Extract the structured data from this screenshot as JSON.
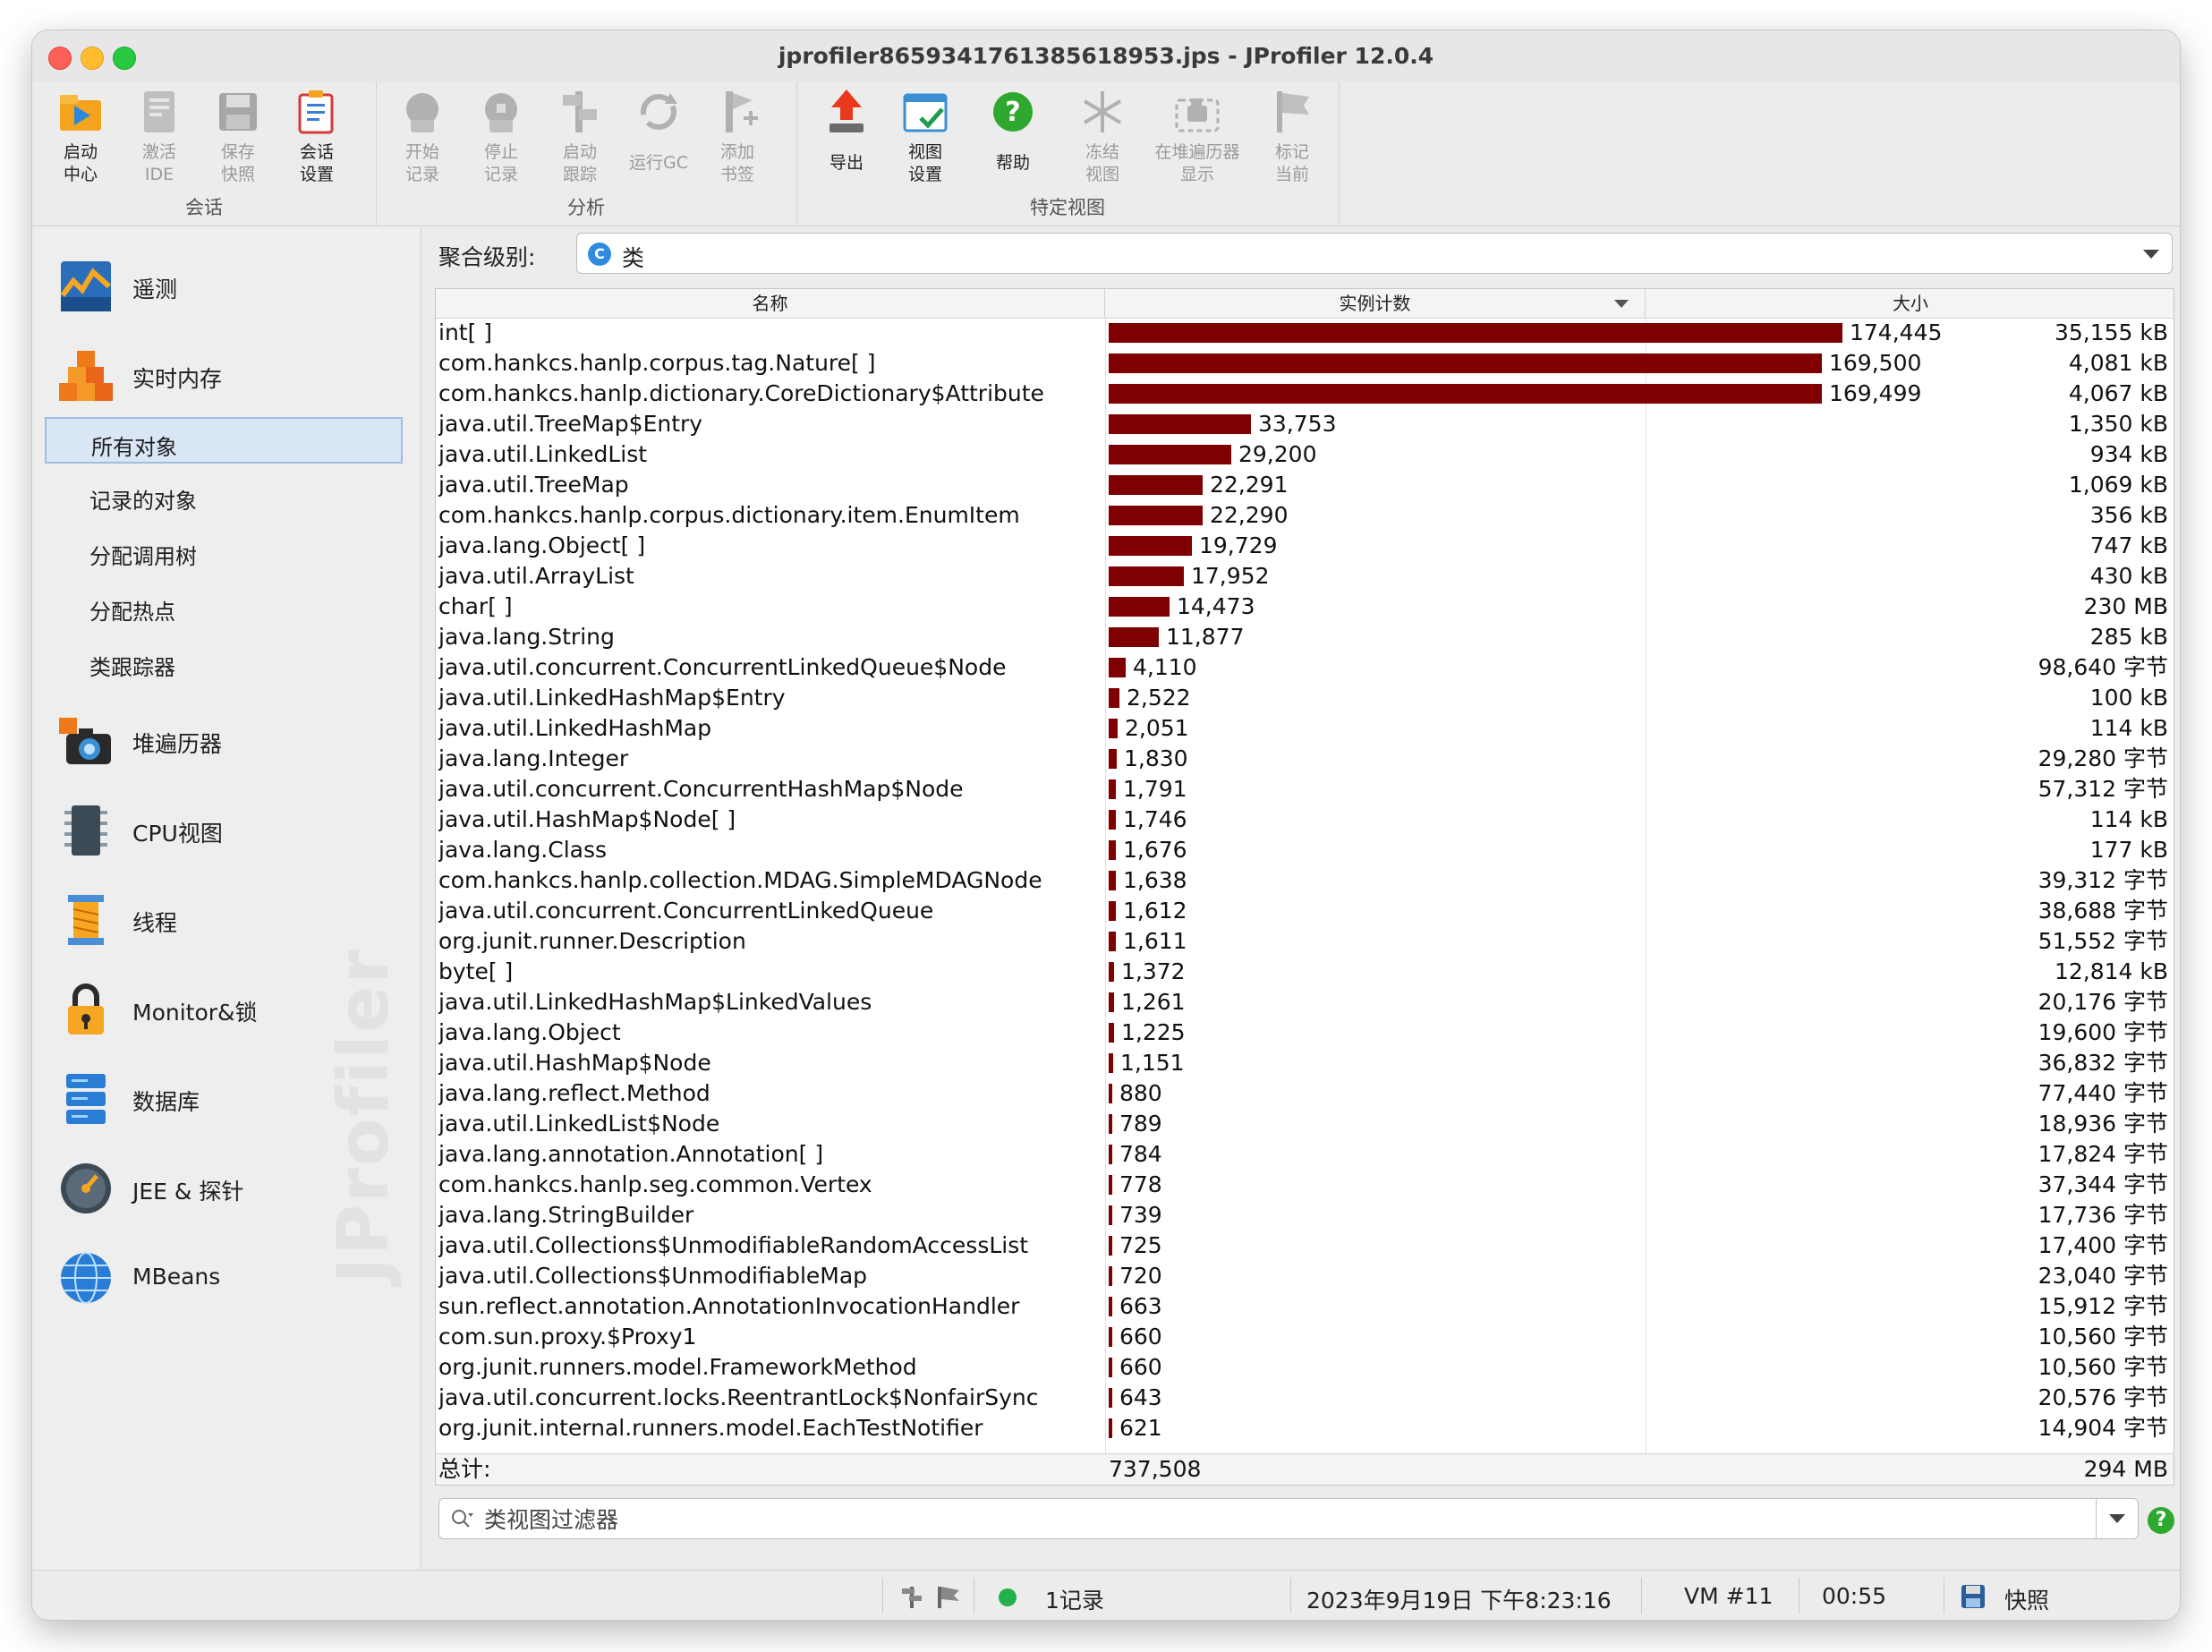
{
  "window": {
    "title": "jprofiler8659341761385618953.jps - JProfiler 12.0.4"
  },
  "toolbar": {
    "groups": [
      {
        "label": "会话",
        "buttons": [
          {
            "label": "启动\n中心",
            "icon": "launch-center-icon"
          },
          {
            "label": "激活\nIDE",
            "icon": "activate-ide-icon"
          },
          {
            "label": "保存\n快照",
            "icon": "save-snapshot-icon"
          },
          {
            "label": "会话\n设置",
            "icon": "session-settings-icon"
          }
        ]
      },
      {
        "label": "分析",
        "buttons": [
          {
            "label": "开始\n记录",
            "icon": "start-recording-icon"
          },
          {
            "label": "停止\n记录",
            "icon": "stop-recording-icon"
          },
          {
            "label": "启动\n跟踪",
            "icon": "start-tracking-icon"
          },
          {
            "label": "运行GC",
            "icon": "run-gc-icon"
          },
          {
            "label": "添加\n书签",
            "icon": "add-bookmark-icon"
          }
        ]
      },
      {
        "label": "特定视图",
        "buttons": [
          {
            "label": "导出",
            "icon": "export-icon"
          },
          {
            "label": "视图\n设置",
            "icon": "view-settings-icon"
          },
          {
            "label": "帮助",
            "icon": "help-icon"
          },
          {
            "label": "冻结\n视图",
            "icon": "freeze-view-icon"
          },
          {
            "label": "在堆遍历器\n显示",
            "icon": "show-in-heap-walker-icon"
          },
          {
            "label": "标记\n当前",
            "icon": "mark-current-icon"
          }
        ]
      }
    ]
  },
  "sidebar": {
    "items": [
      {
        "label": "遥测",
        "icon": "telemetry-icon"
      },
      {
        "label": "实时内存",
        "icon": "live-memory-icon"
      },
      {
        "label": "堆遍历器",
        "icon": "heap-walker-icon"
      },
      {
        "label": "CPU视图",
        "icon": "cpu-views-icon"
      },
      {
        "label": "线程",
        "icon": "threads-icon"
      },
      {
        "label": "Monitor&锁",
        "icon": "monitor-lock-icon"
      },
      {
        "label": "数据库",
        "icon": "database-icon"
      },
      {
        "label": "JEE & 探针",
        "icon": "jee-probes-icon"
      },
      {
        "label": "MBeans",
        "icon": "mbeans-icon"
      }
    ],
    "sub_items": [
      {
        "label": "所有对象",
        "active": true
      },
      {
        "label": "记录的对象",
        "active": false
      },
      {
        "label": "分配调用树",
        "active": false
      },
      {
        "label": "分配热点",
        "active": false
      },
      {
        "label": "类跟踪器",
        "active": false
      }
    ],
    "watermark": "JProfiler"
  },
  "aggregation": {
    "label": "聚合级别:",
    "value": "类",
    "badge": "C"
  },
  "table": {
    "headers": {
      "name": "名称",
      "count": "实例计数",
      "size": "大小"
    },
    "max_count": 174445,
    "bar_color": "#7f0000",
    "rows": [
      {
        "name": "int[ ]",
        "count": 174445,
        "count_label": "174,445",
        "size": "35,155 kB"
      },
      {
        "name": "com.hankcs.hanlp.corpus.tag.Nature[ ]",
        "count": 169500,
        "count_label": "169,500",
        "size": "4,081 kB"
      },
      {
        "name": "com.hankcs.hanlp.dictionary.CoreDictionary$Attribute",
        "count": 169499,
        "count_label": "169,499",
        "size": "4,067 kB"
      },
      {
        "name": "java.util.TreeMap$Entry",
        "count": 33753,
        "count_label": "33,753",
        "size": "1,350 kB"
      },
      {
        "name": "java.util.LinkedList",
        "count": 29200,
        "count_label": "29,200",
        "size": "934 kB"
      },
      {
        "name": "java.util.TreeMap",
        "count": 22291,
        "count_label": "22,291",
        "size": "1,069 kB"
      },
      {
        "name": "com.hankcs.hanlp.corpus.dictionary.item.EnumItem",
        "count": 22290,
        "count_label": "22,290",
        "size": "356 kB"
      },
      {
        "name": "java.lang.Object[ ]",
        "count": 19729,
        "count_label": "19,729",
        "size": "747 kB"
      },
      {
        "name": "java.util.ArrayList",
        "count": 17952,
        "count_label": "17,952",
        "size": "430 kB"
      },
      {
        "name": "char[ ]",
        "count": 14473,
        "count_label": "14,473",
        "size": "230 MB"
      },
      {
        "name": "java.lang.String",
        "count": 11877,
        "count_label": "11,877",
        "size": "285 kB"
      },
      {
        "name": "java.util.concurrent.ConcurrentLinkedQueue$Node",
        "count": 4110,
        "count_label": "4,110",
        "size": "98,640 字节"
      },
      {
        "name": "java.util.LinkedHashMap$Entry",
        "count": 2522,
        "count_label": "2,522",
        "size": "100 kB"
      },
      {
        "name": "java.util.LinkedHashMap",
        "count": 2051,
        "count_label": "2,051",
        "size": "114 kB"
      },
      {
        "name": "java.lang.Integer",
        "count": 1830,
        "count_label": "1,830",
        "size": "29,280 字节"
      },
      {
        "name": "java.util.concurrent.ConcurrentHashMap$Node",
        "count": 1791,
        "count_label": "1,791",
        "size": "57,312 字节"
      },
      {
        "name": "java.util.HashMap$Node[ ]",
        "count": 1746,
        "count_label": "1,746",
        "size": "114 kB"
      },
      {
        "name": "java.lang.Class",
        "count": 1676,
        "count_label": "1,676",
        "size": "177 kB"
      },
      {
        "name": "com.hankcs.hanlp.collection.MDAG.SimpleMDAGNode",
        "count": 1638,
        "count_label": "1,638",
        "size": "39,312 字节"
      },
      {
        "name": "java.util.concurrent.ConcurrentLinkedQueue",
        "count": 1612,
        "count_label": "1,612",
        "size": "38,688 字节"
      },
      {
        "name": "org.junit.runner.Description",
        "count": 1611,
        "count_label": "1,611",
        "size": "51,552 字节"
      },
      {
        "name": "byte[ ]",
        "count": 1372,
        "count_label": "1,372",
        "size": "12,814 kB"
      },
      {
        "name": "java.util.LinkedHashMap$LinkedValues",
        "count": 1261,
        "count_label": "1,261",
        "size": "20,176 字节"
      },
      {
        "name": "java.lang.Object",
        "count": 1225,
        "count_label": "1,225",
        "size": "19,600 字节"
      },
      {
        "name": "java.util.HashMap$Node",
        "count": 1151,
        "count_label": "1,151",
        "size": "36,832 字节"
      },
      {
        "name": "java.lang.reflect.Method",
        "count": 880,
        "count_label": "880",
        "size": "77,440 字节"
      },
      {
        "name": "java.util.LinkedList$Node",
        "count": 789,
        "count_label": "789",
        "size": "18,936 字节"
      },
      {
        "name": "java.lang.annotation.Annotation[ ]",
        "count": 784,
        "count_label": "784",
        "size": "17,824 字节"
      },
      {
        "name": "com.hankcs.hanlp.seg.common.Vertex",
        "count": 778,
        "count_label": "778",
        "size": "37,344 字节"
      },
      {
        "name": "java.lang.StringBuilder",
        "count": 739,
        "count_label": "739",
        "size": "17,736 字节"
      },
      {
        "name": "java.util.Collections$UnmodifiableRandomAccessList",
        "count": 725,
        "count_label": "725",
        "size": "17,400 字节"
      },
      {
        "name": "java.util.Collections$UnmodifiableMap",
        "count": 720,
        "count_label": "720",
        "size": "23,040 字节"
      },
      {
        "name": "sun.reflect.annotation.AnnotationInvocationHandler",
        "count": 663,
        "count_label": "663",
        "size": "15,912 字节"
      },
      {
        "name": "com.sun.proxy.$Proxy1",
        "count": 660,
        "count_label": "660",
        "size": "10,560 字节"
      },
      {
        "name": "org.junit.runners.model.FrameworkMethod",
        "count": 660,
        "count_label": "660",
        "size": "10,560 字节"
      },
      {
        "name": "java.util.concurrent.locks.ReentrantLock$NonfairSync",
        "count": 643,
        "count_label": "643",
        "size": "20,576 字节"
      },
      {
        "name": "org.junit.internal.runners.model.EachTestNotifier",
        "count": 621,
        "count_label": "621",
        "size": "14,904 字节"
      }
    ],
    "total": {
      "label": "总计:",
      "count": "737,508",
      "size": "294 MB"
    }
  },
  "filter": {
    "placeholder": "类视图过滤器",
    "value": ""
  },
  "statusbar": {
    "recordings": "1记录",
    "datetime": "2023年9月19日 下午8:23:16",
    "vm": "VM #11",
    "elapsed": "00:55",
    "snapshot": "快照"
  }
}
